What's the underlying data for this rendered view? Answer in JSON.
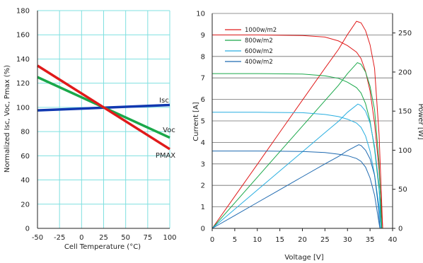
{
  "chart_data": [
    {
      "type": "line",
      "xlabel": "Cell Temperature (°C)",
      "ylabel": "Normalized Isc, Voc, Pmax (%)",
      "xlim": [
        -50,
        100
      ],
      "ylim": [
        0,
        180
      ],
      "xticks": [
        -50,
        -25,
        0,
        25,
        50,
        75,
        100
      ],
      "yticks": [
        0,
        20,
        40,
        60,
        80,
        100,
        120,
        140,
        160,
        180
      ],
      "grid": true,
      "grid_color": "#7fe0e0",
      "series": [
        {
          "name": "Isc",
          "color": "#1038b0",
          "x": [
            -50,
            100
          ],
          "y": [
            97.5,
            102
          ]
        },
        {
          "name": "Voc",
          "color": "#1aa84a",
          "x": [
            -50,
            100
          ],
          "y": [
            125,
            75
          ]
        },
        {
          "name": "PMAX",
          "color": "#e01a1a",
          "x": [
            -50,
            100
          ],
          "y": [
            134.5,
            65.5
          ]
        }
      ],
      "labels": [
        {
          "text": "Isc",
          "series": "Isc"
        },
        {
          "text": "Voc",
          "series": "Voc"
        },
        {
          "text": "PMAX",
          "series": "PMAX"
        }
      ]
    },
    {
      "type": "line",
      "xlabel": "Voltage [V]",
      "ylabel": "Current [A]",
      "y2label": "Power [W]",
      "xlim": [
        0,
        40
      ],
      "ylim": [
        0,
        10
      ],
      "y2lim": [
        0,
        275
      ],
      "xticks": [
        0,
        5,
        10,
        15,
        20,
        25,
        30,
        35,
        40
      ],
      "yticks": [
        0,
        1,
        2,
        3,
        4,
        5,
        6,
        7,
        8,
        9,
        10
      ],
      "y2ticks": [
        0,
        50,
        100,
        150,
        200,
        250
      ],
      "grid": true,
      "grid_color": "#7fe0e0",
      "legend": "top-left",
      "series": [
        {
          "name": "1000w/m2",
          "color": "#e01a1a",
          "isc": 9.0,
          "voc": 37.8,
          "pmax": 265,
          "vmp": 32.0,
          "iv": [
            [
              0,
              9.0
            ],
            [
              10,
              9.0
            ],
            [
              20,
              8.97
            ],
            [
              25,
              8.9
            ],
            [
              28,
              8.72
            ],
            [
              30,
              8.5
            ],
            [
              32,
              8.2
            ],
            [
              33,
              7.9
            ],
            [
              34,
              7.3
            ],
            [
              35,
              6.4
            ],
            [
              36,
              4.9
            ],
            [
              37,
              2.7
            ],
            [
              37.8,
              0
            ]
          ],
          "pv": [
            [
              0,
              0
            ],
            [
              5,
              41
            ],
            [
              10,
              82
            ],
            [
              15,
              123
            ],
            [
              20,
              164
            ],
            [
              25,
              205
            ],
            [
              28,
              229
            ],
            [
              30,
              248
            ],
            [
              32,
              265
            ],
            [
              33,
              263
            ],
            [
              34,
              253
            ],
            [
              35,
              235
            ],
            [
              36,
              205
            ],
            [
              37,
              120
            ],
            [
              37.8,
              0
            ]
          ]
        },
        {
          "name": "800w/m2",
          "color": "#1aa84a",
          "isc": 7.2,
          "voc": 37.6,
          "pmax": 212,
          "vmp": 32.2,
          "iv": [
            [
              0,
              7.2
            ],
            [
              10,
              7.2
            ],
            [
              20,
              7.18
            ],
            [
              25,
              7.1
            ],
            [
              28,
              6.98
            ],
            [
              30,
              6.8
            ],
            [
              32,
              6.55
            ],
            [
              33,
              6.3
            ],
            [
              34,
              5.8
            ],
            [
              35,
              5.0
            ],
            [
              36,
              3.7
            ],
            [
              37,
              1.8
            ],
            [
              37.6,
              0
            ]
          ],
          "pv": [
            [
              0,
              0
            ],
            [
              5,
              32.7
            ],
            [
              10,
              65.4
            ],
            [
              15,
              98.1
            ],
            [
              20,
              130.8
            ],
            [
              25,
              163.5
            ],
            [
              28,
              183
            ],
            [
              30,
              198
            ],
            [
              32.2,
              212
            ],
            [
              33,
              210
            ],
            [
              34,
              200
            ],
            [
              35,
              182
            ],
            [
              36,
              152
            ],
            [
              37,
              85
            ],
            [
              37.6,
              0
            ]
          ]
        },
        {
          "name": "600w/m2",
          "color": "#28aee0",
          "isc": 5.4,
          "voc": 37.4,
          "pmax": 159,
          "vmp": 32.3,
          "iv": [
            [
              0,
              5.4
            ],
            [
              10,
              5.4
            ],
            [
              20,
              5.38
            ],
            [
              25,
              5.3
            ],
            [
              28,
              5.2
            ],
            [
              30,
              5.08
            ],
            [
              32,
              4.9
            ],
            [
              33,
              4.7
            ],
            [
              34,
              4.3
            ],
            [
              35,
              3.6
            ],
            [
              36,
              2.5
            ],
            [
              37,
              1.0
            ],
            [
              37.4,
              0
            ]
          ],
          "pv": [
            [
              0,
              0
            ],
            [
              5,
              24.5
            ],
            [
              10,
              49
            ],
            [
              15,
              73.5
            ],
            [
              20,
              98
            ],
            [
              25,
              122.5
            ],
            [
              28,
              137
            ],
            [
              30,
              148.5
            ],
            [
              32.3,
              159
            ],
            [
              33,
              157
            ],
            [
              34,
              150
            ],
            [
              35,
              135
            ],
            [
              36,
              105
            ],
            [
              37,
              55
            ],
            [
              37.4,
              0
            ]
          ]
        },
        {
          "name": "400w/m2",
          "color": "#1f6ab0",
          "isc": 3.6,
          "voc": 37.2,
          "pmax": 107,
          "vmp": 32.5,
          "iv": [
            [
              0,
              3.6
            ],
            [
              10,
              3.6
            ],
            [
              20,
              3.58
            ],
            [
              25,
              3.53
            ],
            [
              28,
              3.45
            ],
            [
              30,
              3.38
            ],
            [
              32,
              3.25
            ],
            [
              33,
              3.12
            ],
            [
              34,
              2.85
            ],
            [
              35,
              2.35
            ],
            [
              36,
              1.55
            ],
            [
              36.8,
              0.5
            ],
            [
              37.2,
              0
            ]
          ],
          "pv": [
            [
              0,
              0
            ],
            [
              5,
              16.5
            ],
            [
              10,
              33
            ],
            [
              15,
              49.5
            ],
            [
              20,
              66
            ],
            [
              25,
              82.5
            ],
            [
              28,
              92
            ],
            [
              30,
              99.5
            ],
            [
              32.5,
              107
            ],
            [
              33,
              106
            ],
            [
              34,
              100
            ],
            [
              35,
              89
            ],
            [
              36,
              68
            ],
            [
              36.8,
              30
            ],
            [
              37.2,
              0
            ]
          ]
        }
      ]
    }
  ]
}
